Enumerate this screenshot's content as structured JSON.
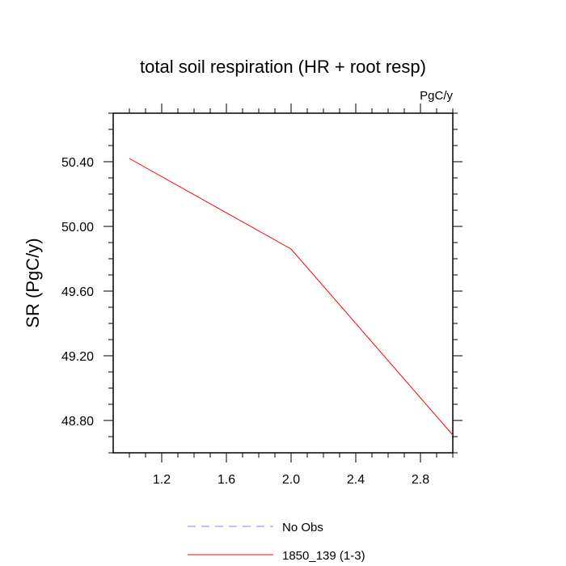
{
  "chart_data": {
    "type": "line",
    "title": "total soil respiration (HR + root resp)",
    "units": "PgC/y",
    "ylabel": "SR  (PgC/y)",
    "xlabel": "",
    "xlim": [
      0.9,
      3.0
    ],
    "ylim": [
      48.6,
      50.7
    ],
    "x_ticks": [
      1.2,
      1.6,
      2.0,
      2.4,
      2.8
    ],
    "x_tick_labels": [
      "1.2",
      "1.6",
      "2.0",
      "2.4",
      "2.8"
    ],
    "y_ticks": [
      48.8,
      49.2,
      49.6,
      50.0,
      50.4
    ],
    "y_tick_labels": [
      "48.80",
      "49.20",
      "49.60",
      "50.00",
      "50.40"
    ],
    "grid": false,
    "legend_position": "bottom",
    "series": [
      {
        "name": "No Obs",
        "color": "#8080ff",
        "style": "dashed",
        "x": [],
        "y": []
      },
      {
        "name": "1850_139 (1-3)",
        "color": "#ff0000",
        "style": "solid",
        "x": [
          1.0,
          2.0,
          3.0
        ],
        "y": [
          50.42,
          49.86,
          48.71
        ]
      }
    ]
  }
}
